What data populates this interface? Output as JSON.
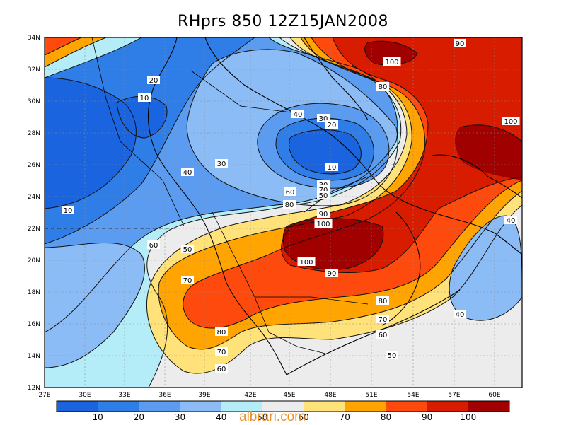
{
  "title": "RHprs 850  12Z15JAN2008",
  "watermark": "albrari.com",
  "axes": {
    "lat_labels": [
      "34N",
      "32N",
      "30N",
      "28N",
      "26N",
      "24N",
      "22N",
      "20N",
      "18N",
      "16N",
      "14N",
      "12N"
    ],
    "lon_labels": [
      "27E",
      "30E",
      "33E",
      "36E",
      "39E",
      "42E",
      "45E",
      "48E",
      "51E",
      "54E",
      "57E",
      "60E"
    ]
  },
  "colorbar": {
    "colors": [
      "#1a64e0",
      "#2f7ee8",
      "#5b9cf0",
      "#8cbcf5",
      "#b4ecf8",
      "#ececec",
      "#ffe27a",
      "#ffa400",
      "#ff4a0e",
      "#d81c00",
      "#a10000"
    ],
    "labels": [
      "10",
      "20",
      "30",
      "40",
      "50",
      "60",
      "70",
      "80",
      "90",
      "100"
    ]
  },
  "contour_labels": [
    {
      "text": "90"
    },
    {
      "text": "100"
    },
    {
      "text": "80"
    },
    {
      "text": "20"
    },
    {
      "text": "10"
    },
    {
      "text": "40"
    },
    {
      "text": "30"
    },
    {
      "text": "20"
    },
    {
      "text": "100"
    },
    {
      "text": "10"
    },
    {
      "text": "40"
    },
    {
      "text": "30"
    },
    {
      "text": "10"
    },
    {
      "text": "30"
    },
    {
      "text": "60"
    },
    {
      "text": "70"
    },
    {
      "text": "80"
    },
    {
      "text": "50"
    },
    {
      "text": "90"
    },
    {
      "text": "100"
    },
    {
      "text": "40"
    },
    {
      "text": "10"
    },
    {
      "text": "60"
    },
    {
      "text": "50"
    },
    {
      "text": "100"
    },
    {
      "text": "90"
    },
    {
      "text": "70"
    },
    {
      "text": "80"
    },
    {
      "text": "70"
    },
    {
      "text": "60"
    },
    {
      "text": "80"
    },
    {
      "text": "70"
    },
    {
      "text": "60"
    },
    {
      "text": "50"
    },
    {
      "text": "40"
    }
  ]
}
